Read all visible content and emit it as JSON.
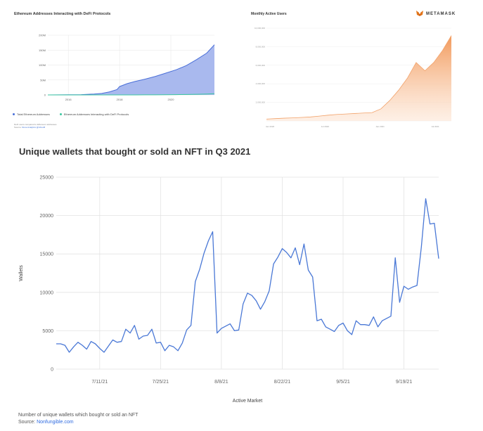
{
  "chart_data": [
    {
      "type": "area",
      "title": "Ethereum Addresses Interacting with DeFi Protocols",
      "ylim": [
        0,
        200
      ],
      "yticks": [
        "0",
        "50M",
        "100M",
        "150M",
        "200M"
      ],
      "xticks": [
        "2016",
        "2018",
        "2020"
      ],
      "x": [
        2015.2,
        2016,
        2016.5,
        2017,
        2017.3,
        2017.6,
        2017.9,
        2018,
        2018.3,
        2018.6,
        2019,
        2019.4,
        2019.8,
        2020.2,
        2020.6,
        2021,
        2021.4,
        2021.7
      ],
      "series": [
        {
          "name": "Total Ethereum Addresses",
          "values": [
            0,
            0.5,
            1,
            3,
            5,
            10,
            18,
            28,
            38,
            45,
            53,
            62,
            73,
            84,
            98,
            118,
            140,
            168
          ],
          "color": "#4a6fd8"
        },
        {
          "name": "Ethereum Addresses Interacting with DeFi Protocols",
          "values": [
            0,
            0,
            0,
            0,
            0,
            0,
            0,
            0,
            0,
            0,
            0.2,
            0.4,
            0.7,
            1,
            1.5,
            2,
            3,
            4
          ],
          "color": "#3cc7a0"
        }
      ],
      "note_line1": "DeFi users compared to Ethereum addresses",
      "note_source_label": "Source:",
      "note_source": "Dune Analytics @rchen8"
    },
    {
      "type": "area",
      "title": "Monthly Active Users",
      "yticks": [
        "",
        "2,000,000",
        "4,000,000",
        "6,000,000",
        "8,000,000",
        "10,000,000"
      ],
      "xticks": [
        "Jan 2020",
        "Jul 2020",
        "Jan 2021",
        "Jul 2021"
      ],
      "ylim": [
        0,
        10000000
      ],
      "x": [
        0,
        1,
        2,
        3,
        4,
        5,
        6,
        7,
        8,
        9,
        10,
        11,
        12,
        13,
        14,
        15,
        16,
        17,
        18,
        19,
        20,
        21
      ],
      "values": [
        200000,
        250000,
        300000,
        330000,
        380000,
        430000,
        520000,
        620000,
        700000,
        750000,
        800000,
        850000,
        900000,
        1300000,
        2200000,
        3300000,
        4600000,
        6300000,
        5400000,
        6300000,
        7600000,
        9200000
      ],
      "color": "#f2a26a",
      "brand": "METAMASK"
    },
    {
      "type": "line",
      "title": "Unique wallets that bought or sold an NFT in Q3 2021",
      "xlabel": "Active Market",
      "ylabel": "Wallets",
      "ylim": [
        0,
        25000
      ],
      "yticks": [
        0,
        5000,
        10000,
        15000,
        20000,
        25000
      ],
      "xticks": [
        {
          "label": "7/11/21",
          "day": 10
        },
        {
          "label": "7/25/21",
          "day": 24
        },
        {
          "label": "8/8/21",
          "day": 38
        },
        {
          "label": "8/22/21",
          "day": 52
        },
        {
          "label": "9/5/21",
          "day": 66
        },
        {
          "label": "9/19/21",
          "day": 80
        }
      ],
      "x_start_day": 0,
      "x_end_day": 92,
      "values": [
        3300,
        3300,
        3100,
        2200,
        2900,
        3500,
        3100,
        2600,
        3600,
        3300,
        2700,
        2200,
        3000,
        3800,
        3500,
        3600,
        5200,
        4700,
        5700,
        3900,
        4300,
        4400,
        5200,
        3400,
        3500,
        2400,
        3100,
        2900,
        2400,
        3400,
        5100,
        5700,
        11400,
        13000,
        15100,
        16700,
        17900,
        4700,
        5300,
        5600,
        5900,
        5000,
        5100,
        8500,
        9900,
        9600,
        8900,
        7800,
        8800,
        10200,
        13700,
        14600,
        15700,
        15200,
        14500,
        15800,
        13600,
        16300,
        12900,
        12000,
        6300,
        6500,
        5500,
        5200,
        4900,
        5700,
        6000,
        5000,
        4500,
        6300,
        5800,
        5800,
        5700,
        6800,
        5500,
        6300,
        6600,
        6900,
        14500,
        8700,
        10800,
        10400,
        10700,
        10900,
        15900,
        22200,
        18900,
        19000,
        14400
      ],
      "color": "#4a78d6",
      "caption": "Number of unique wallets which bought or sold an NFT",
      "source_label": "Source:",
      "source": "Nonfungible.com"
    }
  ]
}
